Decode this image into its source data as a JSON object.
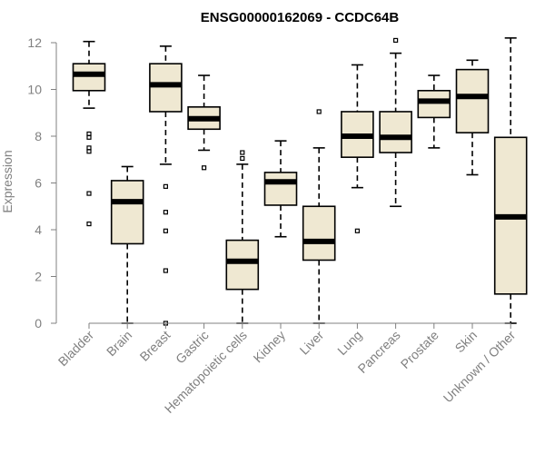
{
  "chart_data": {
    "type": "boxplot",
    "title": "ENSG00000162069 - CCDC64B",
    "xlabel": "",
    "ylabel": "Expression",
    "ylim": [
      0,
      12
    ],
    "yticks": [
      0,
      2,
      4,
      6,
      8,
      10,
      12
    ],
    "box_fill": "#efe8d2",
    "categories": [
      "Bladder",
      "Brain",
      "Breast",
      "Gastric",
      "Hematopoietic cells",
      "Kidney",
      "Liver",
      "Lung",
      "Pancreas",
      "Prostate",
      "Skin",
      "Unknown / Other"
    ],
    "boxes": [
      {
        "name": "Bladder",
        "min": 9.2,
        "q1": 9.95,
        "median": 10.65,
        "q3": 11.1,
        "max": 12.05,
        "outliers": [
          8.1,
          7.95,
          7.5,
          7.35,
          5.55,
          4.25
        ]
      },
      {
        "name": "Brain",
        "min": 0.0,
        "q1": 3.4,
        "median": 5.2,
        "q3": 6.1,
        "max": 6.7,
        "outliers": []
      },
      {
        "name": "Breast",
        "min": 6.8,
        "q1": 9.05,
        "median": 10.2,
        "q3": 11.1,
        "max": 11.85,
        "outliers": [
          5.85,
          4.75,
          3.95,
          2.25,
          0.0
        ]
      },
      {
        "name": "Gastric",
        "min": 7.4,
        "q1": 8.3,
        "median": 8.75,
        "q3": 9.25,
        "max": 10.6,
        "outliers": [
          6.65
        ]
      },
      {
        "name": "Hematopoietic cells",
        "min": 0.0,
        "q1": 1.45,
        "median": 2.65,
        "q3": 3.55,
        "max": 6.8,
        "outliers": [
          7.3,
          7.05
        ]
      },
      {
        "name": "Kidney",
        "min": 3.7,
        "q1": 5.05,
        "median": 6.05,
        "q3": 6.45,
        "max": 7.8,
        "outliers": []
      },
      {
        "name": "Liver",
        "min": 0.0,
        "q1": 2.7,
        "median": 3.5,
        "q3": 5.0,
        "max": 7.5,
        "outliers": [
          9.05
        ]
      },
      {
        "name": "Lung",
        "min": 5.8,
        "q1": 7.1,
        "median": 8.0,
        "q3": 9.05,
        "max": 11.05,
        "outliers": [
          3.95
        ]
      },
      {
        "name": "Pancreas",
        "min": 5.0,
        "q1": 7.3,
        "median": 7.95,
        "q3": 9.05,
        "max": 11.55,
        "outliers": [
          12.1
        ]
      },
      {
        "name": "Prostate",
        "min": 7.5,
        "q1": 8.8,
        "median": 9.5,
        "q3": 9.95,
        "max": 10.6,
        "outliers": []
      },
      {
        "name": "Skin",
        "min": 6.35,
        "q1": 8.15,
        "median": 9.7,
        "q3": 10.85,
        "max": 11.25,
        "outliers": []
      },
      {
        "name": "Unknown / Other",
        "min": 0.0,
        "q1": 1.25,
        "median": 4.55,
        "q3": 7.95,
        "max": 12.2,
        "outliers": []
      }
    ]
  }
}
